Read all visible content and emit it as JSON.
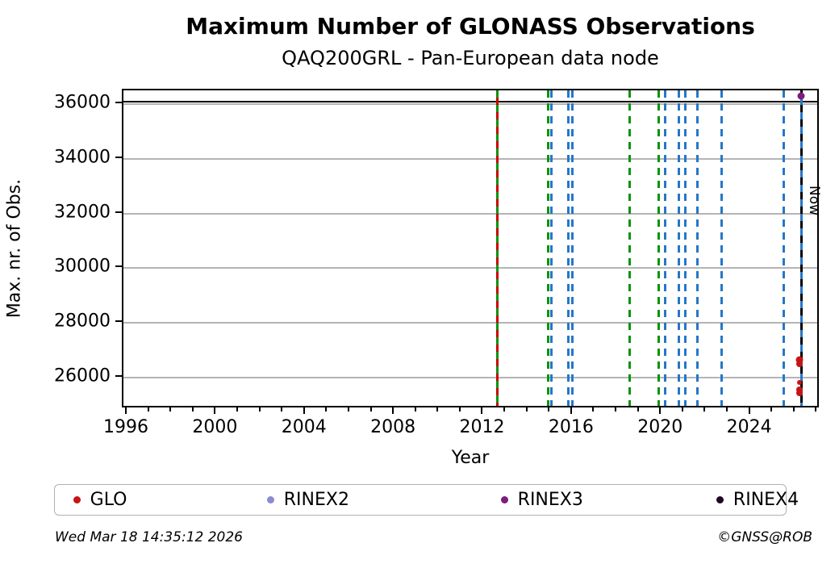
{
  "header": {
    "title": "Maximum Number of GLONASS Observations",
    "subtitle": "QAQ200GRL - Pan-European data node"
  },
  "footer": {
    "timestamp": "Wed Mar 18 14:35:12 2026",
    "credit": "©GNSS@ROB"
  },
  "chart_data": {
    "type": "scatter",
    "title": "Maximum Number of GLONASS Observations",
    "subtitle": "QAQ200GRL - Pan-European data node",
    "xlabel": "Year",
    "ylabel": "Max. nr. of Obs.",
    "xlim": [
      1995.82,
      2027.13
    ],
    "ylim": [
      24850,
      36500
    ],
    "xticks_major": [
      1996,
      2000,
      2004,
      2008,
      2012,
      2016,
      2020,
      2024
    ],
    "xticks_minor_step": 1,
    "yticks": [
      26000,
      28000,
      30000,
      32000,
      34000,
      36000
    ],
    "grid": "horizontal-only",
    "grid_color": "#b4b4b4",
    "hlines": [
      {
        "value": 36100,
        "color": "#000000",
        "style": "solid"
      }
    ],
    "vlines": [
      {
        "year": 2012.63,
        "style": "dashed",
        "colors": [
          "#0b930b",
          "#cc0000"
        ],
        "meaning": "green+red change marker"
      },
      {
        "year": 2014.91,
        "style": "dashed",
        "colors": [
          "#0b930b"
        ],
        "meaning": "green change marker"
      },
      {
        "year": 2015.06,
        "style": "dashed",
        "colors": [
          "#2577c8"
        ],
        "meaning": "blue change marker"
      },
      {
        "year": 2015.82,
        "style": "dashed",
        "colors": [
          "#2577c8"
        ],
        "meaning": "blue change marker"
      },
      {
        "year": 2016.0,
        "style": "dashed",
        "colors": [
          "#2577c8"
        ],
        "meaning": "blue change marker"
      },
      {
        "year": 2018.57,
        "style": "dashed",
        "colors": [
          "#0b930b"
        ],
        "meaning": "green change marker"
      },
      {
        "year": 2019.88,
        "style": "dashed",
        "colors": [
          "#0b930b"
        ],
        "meaning": "green change marker"
      },
      {
        "year": 2020.17,
        "style": "dashed",
        "colors": [
          "#2577c8"
        ],
        "meaning": "blue change marker"
      },
      {
        "year": 2020.78,
        "style": "dashed",
        "colors": [
          "#2577c8"
        ],
        "meaning": "blue change marker"
      },
      {
        "year": 2021.07,
        "style": "dashed",
        "colors": [
          "#2577c8"
        ],
        "meaning": "blue change marker"
      },
      {
        "year": 2021.62,
        "style": "dashed",
        "colors": [
          "#2577c8"
        ],
        "meaning": "blue change marker"
      },
      {
        "year": 2022.7,
        "style": "dashed",
        "colors": [
          "#2577c8"
        ],
        "meaning": "blue change marker"
      },
      {
        "year": 2025.49,
        "style": "dashed",
        "colors": [
          "#2577c8"
        ],
        "meaning": "blue change marker"
      },
      {
        "year": 2026.29,
        "style": "dashed",
        "colors": [
          "#000000",
          "#2577c8"
        ],
        "meaning": "now line",
        "label": "Now"
      }
    ],
    "now_label": "Now",
    "series": [
      {
        "name": "GLO",
        "color": "#c81414",
        "points": [
          [
            2026.2,
            26660,
            9
          ],
          [
            2026.2,
            26510,
            8
          ],
          [
            2026.2,
            25810,
            6
          ],
          [
            2026.2,
            25560,
            8
          ],
          [
            2026.2,
            25440,
            8
          ]
        ]
      },
      {
        "name": "RINEX2",
        "color": "#8b8bd0",
        "points": []
      },
      {
        "name": "RINEX3",
        "color": "#7c1d7c",
        "points": [
          [
            2026.25,
            36290,
            9
          ]
        ]
      },
      {
        "name": "RINEX4",
        "color": "#200724",
        "points": []
      }
    ],
    "legend_position": "bottom",
    "legend_item_offsets_pct": [
      2.5,
      29.0,
      61.0,
      90.5
    ]
  }
}
